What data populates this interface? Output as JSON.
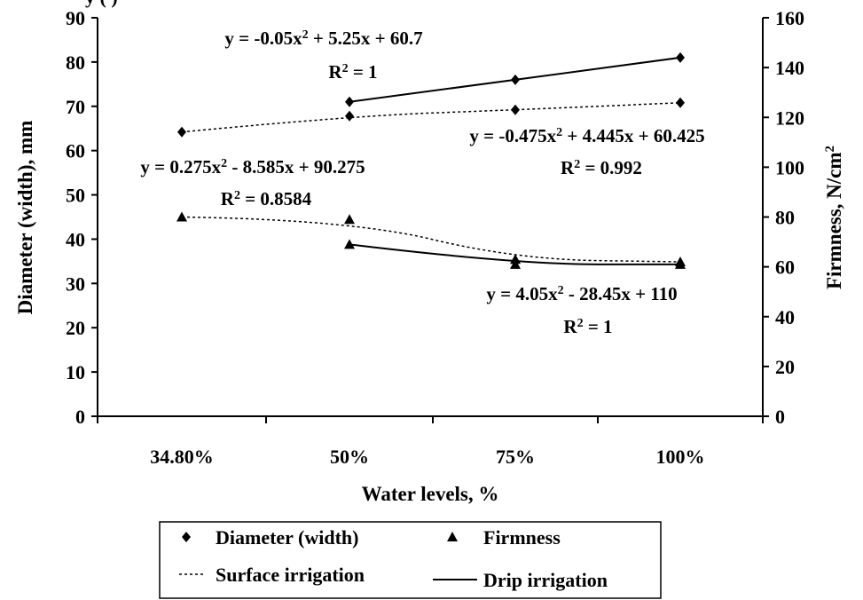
{
  "chart_data": {
    "type": "line",
    "title": "",
    "xlabel": "Water levels, %",
    "ylabel": "Diameter (width), mm",
    "y2label": "Firmness, N/cm",
    "y2label_sup": "2",
    "categories": [
      "34.80%",
      "50%",
      "75%",
      "100%"
    ],
    "ylim": [
      0,
      90
    ],
    "y_ticks": [
      "0",
      "10",
      "20",
      "30",
      "40",
      "50",
      "60",
      "70",
      "80",
      "90"
    ],
    "y2lim": [
      0,
      160
    ],
    "y2_ticks": [
      "0",
      "20",
      "40",
      "60",
      "80",
      "100",
      "120",
      "140",
      "160"
    ],
    "grid": false,
    "series": [
      {
        "name": "Diameter (width)",
        "irrigation": "Surface irrigation",
        "axis": "left",
        "marker": "diamond",
        "line": "dotted",
        "values": [
          64.2,
          67.8,
          69.2,
          70.8
        ]
      },
      {
        "name": "Diameter (width)",
        "irrigation": "Drip irrigation",
        "axis": "left",
        "marker": "diamond",
        "line": "solid",
        "values": [
          null,
          71.0,
          76.0,
          81.0
        ]
      },
      {
        "name": "Firmness",
        "irrigation": "Surface irrigation",
        "axis": "right",
        "marker": "triangle",
        "line": "dotted",
        "values": [
          80.0,
          79.0,
          63.0,
          62.0
        ]
      },
      {
        "name": "Firmness",
        "irrigation": "Drip irrigation",
        "axis": "right",
        "marker": "triangle",
        "line": "solid",
        "values": [
          null,
          69.0,
          61.0,
          61.0
        ]
      }
    ],
    "annotations": [
      {
        "eq_a": "y = -0.05x",
        "eq_sup": "2",
        "eq_b": " + 5.25x + 60.7",
        "r_a": "R",
        "r_sup": "2",
        "r_b": " = 1"
      },
      {
        "eq_a": "y = -0.475x",
        "eq_sup": "2",
        "eq_b": " + 4.445x + 60.425",
        "r_a": "R",
        "r_sup": "2",
        "r_b": " = 0.992"
      },
      {
        "eq_a": "y = 0.275x",
        "eq_sup": "2",
        "eq_b": " - 8.585x + 90.275",
        "r_a": "R",
        "r_sup": "2",
        "r_b": " = 0.8584"
      },
      {
        "eq_a": "y = 4.05x",
        "eq_sup": "2",
        "eq_b": " - 28.45x + 110",
        "r_a": "R",
        "r_sup": "2",
        "r_b": " = 1"
      }
    ],
    "legend": {
      "placement": "bottom",
      "items": [
        "Diameter (width)",
        "Firmness",
        "Surface irrigation",
        "Drip irrigation"
      ]
    },
    "top_fragment": "y (   )"
  }
}
